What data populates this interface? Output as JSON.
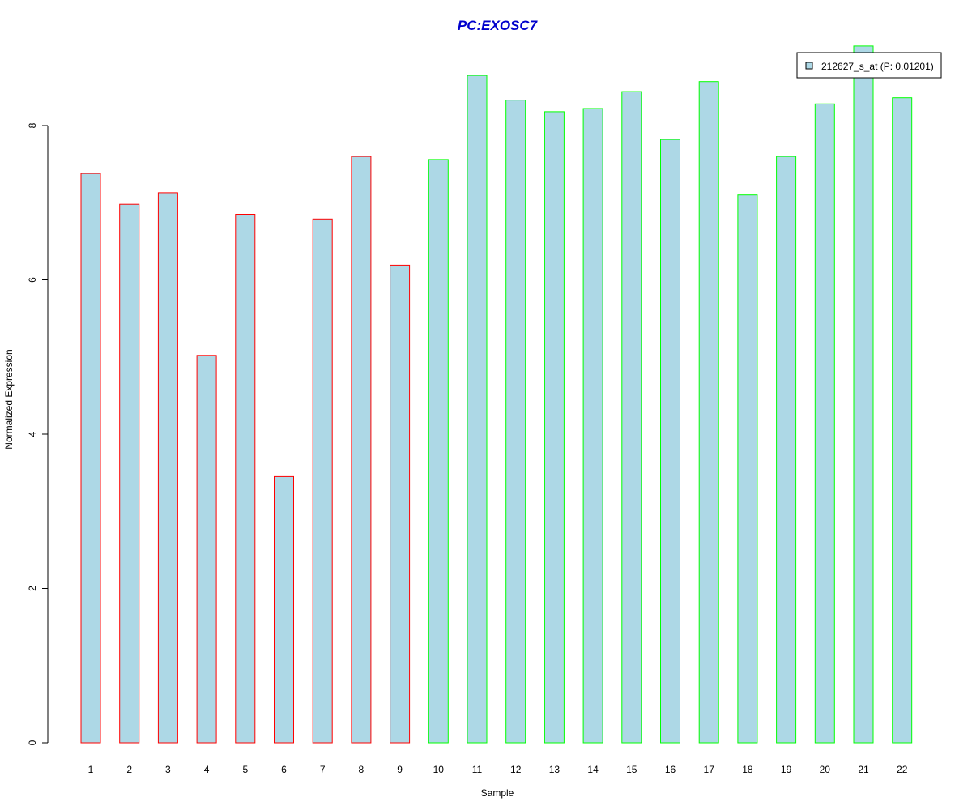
{
  "chart_data": {
    "type": "bar",
    "title": "PC:EXOSC7",
    "xlabel": "Sample",
    "ylabel": "Normalized Expression",
    "categories": [
      "1",
      "2",
      "3",
      "4",
      "5",
      "6",
      "7",
      "8",
      "9",
      "10",
      "11",
      "12",
      "13",
      "14",
      "15",
      "16",
      "17",
      "18",
      "19",
      "20",
      "21",
      "22"
    ],
    "series": [
      {
        "name": "212627_s_at (P: 0.01201)",
        "values": [
          7.38,
          6.98,
          7.13,
          5.02,
          6.85,
          3.45,
          6.79,
          7.6,
          6.19,
          7.56,
          8.65,
          8.33,
          8.18,
          8.22,
          8.44,
          7.82,
          8.57,
          7.1,
          7.6,
          8.28,
          9.03,
          8.36
        ]
      }
    ],
    "group_sizes": [
      9,
      13
    ],
    "ylim": [
      0,
      9.2
    ],
    "yticks": [
      0,
      2,
      4,
      6,
      8
    ],
    "legend_position": "top-right",
    "grid": false,
    "colors": {
      "bar_fill": "#add8e6",
      "group_borders": [
        "#ff0000",
        "#00ff00"
      ],
      "title": "#0000cc",
      "axis": "#000000"
    }
  }
}
